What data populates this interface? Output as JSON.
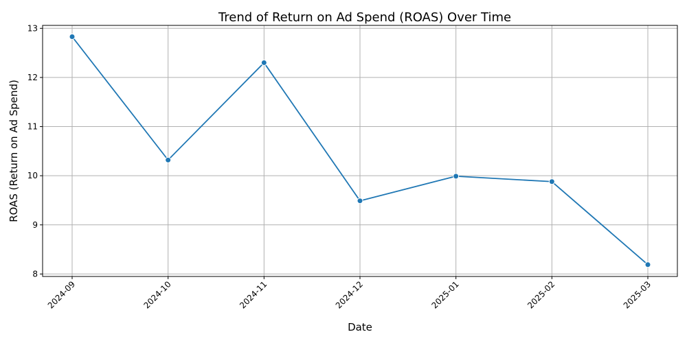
{
  "chart_data": {
    "type": "line",
    "title": "Trend of Return on Ad Spend (ROAS) Over Time",
    "xlabel": "Date",
    "ylabel": "ROAS (Return on Ad Spend)",
    "x": [
      "2024-09",
      "2024-10",
      "2024-11",
      "2024-12",
      "2025-01",
      "2025-02",
      "2025-03"
    ],
    "series": [
      {
        "values": [
          12.83,
          10.32,
          12.3,
          9.49,
          9.99,
          9.88,
          8.19
        ],
        "color": "#1f77b4"
      }
    ],
    "yticks": [
      8,
      9,
      10,
      11,
      12,
      13
    ],
    "ylim": [
      7.95,
      13.06
    ],
    "grid": true,
    "marker": "circle"
  }
}
